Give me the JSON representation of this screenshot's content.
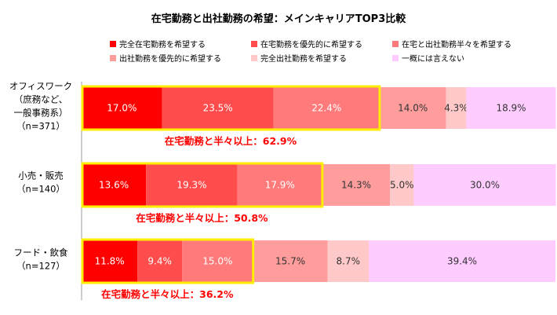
{
  "chart_data": {
    "type": "bar",
    "orientation": "horizontal",
    "stacked": true,
    "percent_stacked": true,
    "title": "在宅勤務と出社勤務の希望：メインキャリアTOP3比較",
    "legend_position": "top",
    "categories": [
      {
        "lines": [
          "オフィスワーク",
          "（庶務など、",
          "一般事務系）",
          "（n=371）"
        ]
      },
      {
        "lines": [
          "小売・販売",
          "（n=140）"
        ]
      },
      {
        "lines": [
          "フード・飲食",
          "（n=127）"
        ]
      }
    ],
    "series": [
      {
        "name": "完全在宅勤務を希望する",
        "color": "#ff0000",
        "values": [
          17.0,
          13.6,
          11.8
        ],
        "labels": [
          "17.0%",
          "13.6%",
          "11.8%"
        ]
      },
      {
        "name": "在宅勤務を優先的に希望する",
        "color": "#ff4d4d",
        "values": [
          23.5,
          19.3,
          9.4
        ],
        "labels": [
          "23.5%",
          "19.3%",
          "9.4%"
        ]
      },
      {
        "name": "在宅と出社勤務半々を希望する",
        "color": "#ff7b7b",
        "values": [
          22.4,
          17.9,
          15.0
        ],
        "labels": [
          "22.4%",
          "17.9%",
          "15.0%"
        ]
      },
      {
        "name": "出社勤務を優先的に希望する",
        "color": "#ff9d9d",
        "values": [
          14.0,
          14.3,
          15.7
        ],
        "labels": [
          "14.0%",
          "14.3%",
          "15.7%"
        ]
      },
      {
        "name": "完全出社勤務を希望する",
        "color": "#ffc9c9",
        "values": [
          4.3,
          5.0,
          8.7
        ],
        "labels": [
          "4.3%",
          "5.0%",
          "8.7%"
        ]
      },
      {
        "name": "一概には言えない",
        "color": "#ffccff",
        "values": [
          18.9,
          30.0,
          39.4
        ],
        "labels": [
          "18.9%",
          "30.0%",
          "39.4%"
        ]
      }
    ],
    "annotations": [
      "在宅勤務と半々以上：62.9%",
      "在宅勤務と半々以上：50.8%",
      "在宅勤務と半々以上：36.2%"
    ],
    "highlight_series_count": 3,
    "highlight_color": "#ffee00",
    "annotation_color": "#ff0000",
    "value_label_colors": [
      "#ffffff",
      "#333333"
    ],
    "axis_color": "#999999"
  }
}
